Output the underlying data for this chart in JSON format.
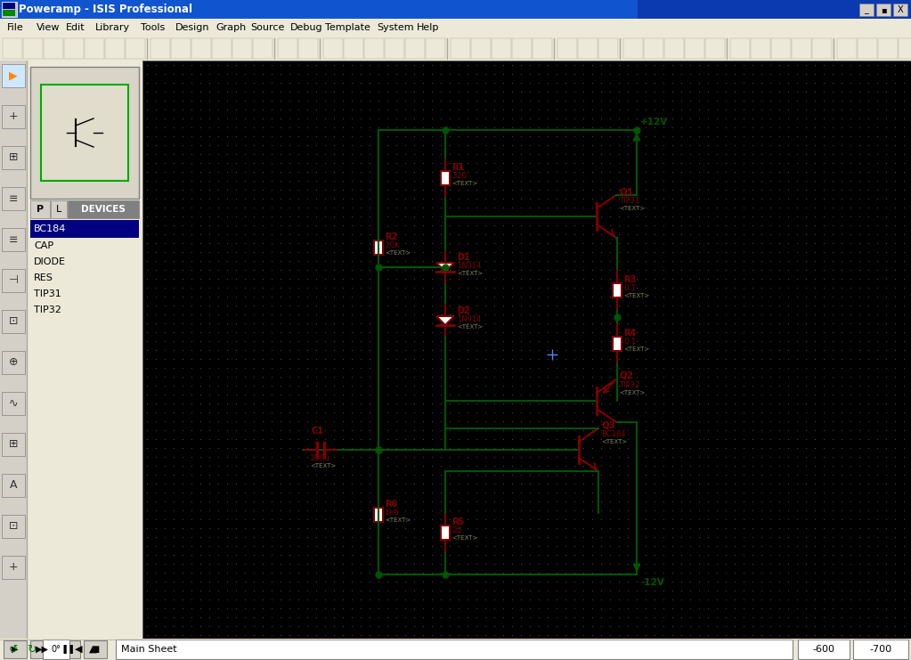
{
  "title_bar": "Poweramp - ISIS Professional",
  "bg_color": "#c8c8b0",
  "grid_dot_color": "#b4b4a0",
  "wire_color": "#005500",
  "component_color": "#800000",
  "junction_color": "#005500",
  "label_color": "#800000",
  "subtext_color": "#808060",
  "sidebar_bg": "#d4d0c8",
  "titlebar_color": "#0a246a",
  "titlebar_text_color": "#ffffff",
  "menubar_bg": "#ece9d8",
  "toolbar_bg": "#ece9d8",
  "statusbar_bg": "#ece9d8",
  "schematic_bg": "#c8c8b0",
  "window_border": "#0a246a",
  "menus": [
    "File",
    "View",
    "Edit",
    "Library",
    "Tools",
    "Design",
    "Graph",
    "Source",
    "Debug",
    "Template",
    "System",
    "Help"
  ],
  "devices": [
    "BC184",
    "CAP",
    "DIODE",
    "RES",
    "TIP31",
    "TIP32"
  ],
  "status_left": "Main Sheet",
  "status_coord1": "-600",
  "status_coord2": "-700",
  "vcc_label": "+12V",
  "vss_label": "-12V",
  "components": {
    "R1": {
      "label": "R1",
      "value": "320",
      "sub": "<TEXT>"
    },
    "R2": {
      "label": "R2",
      "value": "20k",
      "sub": "<TEXT>"
    },
    "R3": {
      "label": "R3",
      "value": "0.1",
      "sub": "<TEXT>"
    },
    "R4": {
      "label": "R4",
      "value": "0.1",
      "sub": "<TEXT>"
    },
    "R5": {
      "label": "R5",
      "value": "20",
      "sub": "<TEXT>"
    },
    "R6": {
      "label": "R6",
      "value": "1k6",
      "sub": "<TEXT>"
    },
    "C1": {
      "label": "C1",
      "value": "100u",
      "sub": "<TEXT>"
    },
    "D1": {
      "label": "D1",
      "value": "1N914",
      "sub": "<TEXT>"
    },
    "D2": {
      "label": "D2",
      "value": "1N914",
      "sub": "<TEXT>"
    },
    "Q1": {
      "label": "Q1",
      "value": "TIP31",
      "sub": "<TEXT>"
    },
    "Q2": {
      "label": "Q2",
      "value": "TIP32",
      "sub": "<TEXT>"
    },
    "Q3": {
      "label": "Q3",
      "value": "BC184",
      "sub": "<TEXT>"
    }
  }
}
